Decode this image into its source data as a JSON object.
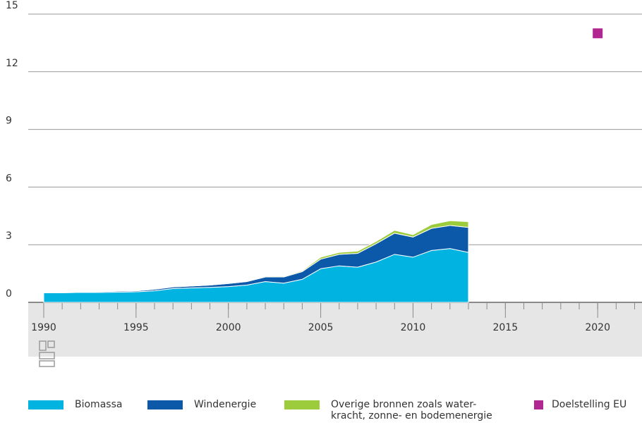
{
  "chart_data": {
    "type": "stacked-area",
    "x": [
      1990,
      1991,
      1992,
      1993,
      1994,
      1995,
      1996,
      1997,
      1998,
      1999,
      2000,
      2001,
      2002,
      2003,
      2004,
      2005,
      2006,
      2007,
      2008,
      2009,
      2010,
      2011,
      2012,
      2013
    ],
    "series": [
      {
        "name": "Biomassa",
        "color": "#00b3e1",
        "values": [
          0.5,
          0.5,
          0.52,
          0.52,
          0.53,
          0.55,
          0.6,
          0.72,
          0.75,
          0.78,
          0.82,
          0.9,
          1.08,
          1.0,
          1.2,
          1.75,
          1.9,
          1.83,
          2.1,
          2.5,
          2.35,
          2.7,
          2.8,
          2.6
        ]
      },
      {
        "name": "Windenergie",
        "color": "#0b59a8",
        "values": [
          0.02,
          0.02,
          0.03,
          0.04,
          0.05,
          0.05,
          0.08,
          0.08,
          0.1,
          0.12,
          0.16,
          0.18,
          0.24,
          0.32,
          0.4,
          0.5,
          0.6,
          0.72,
          0.95,
          1.1,
          1.05,
          1.15,
          1.2,
          1.3
        ]
      },
      {
        "name": "Overige bronnen zoals water-\nkracht, zonne- en bodemenergie",
        "color": "#9ccb3b",
        "values": [
          0.01,
          0.01,
          0.01,
          0.01,
          0.02,
          0.02,
          0.02,
          0.02,
          0.03,
          0.03,
          0.03,
          0.03,
          0.04,
          0.04,
          0.05,
          0.1,
          0.1,
          0.12,
          0.12,
          0.15,
          0.12,
          0.2,
          0.25,
          0.3
        ]
      }
    ],
    "target": {
      "name": "Doelstelling EU",
      "color": "#b0288f",
      "x": 2020,
      "value": 14
    },
    "xlim": [
      1989.16,
      2022.4
    ],
    "xticks": [
      1990,
      1995,
      2000,
      2005,
      2010,
      2015,
      2020
    ],
    "xminorticks": [
      1990,
      1991,
      1992,
      1993,
      1994,
      1995,
      1996,
      1997,
      1998,
      1999,
      2000,
      2001,
      2002,
      2003,
      2004,
      2005,
      2006,
      2007,
      2008,
      2009,
      2010,
      2011,
      2012,
      2013,
      2014,
      2015,
      2016,
      2017,
      2018,
      2019,
      2020,
      2021,
      2022
    ],
    "ylim": [
      0,
      15
    ],
    "yticks": [
      0,
      3,
      6,
      9,
      12,
      15
    ],
    "grid": true
  }
}
